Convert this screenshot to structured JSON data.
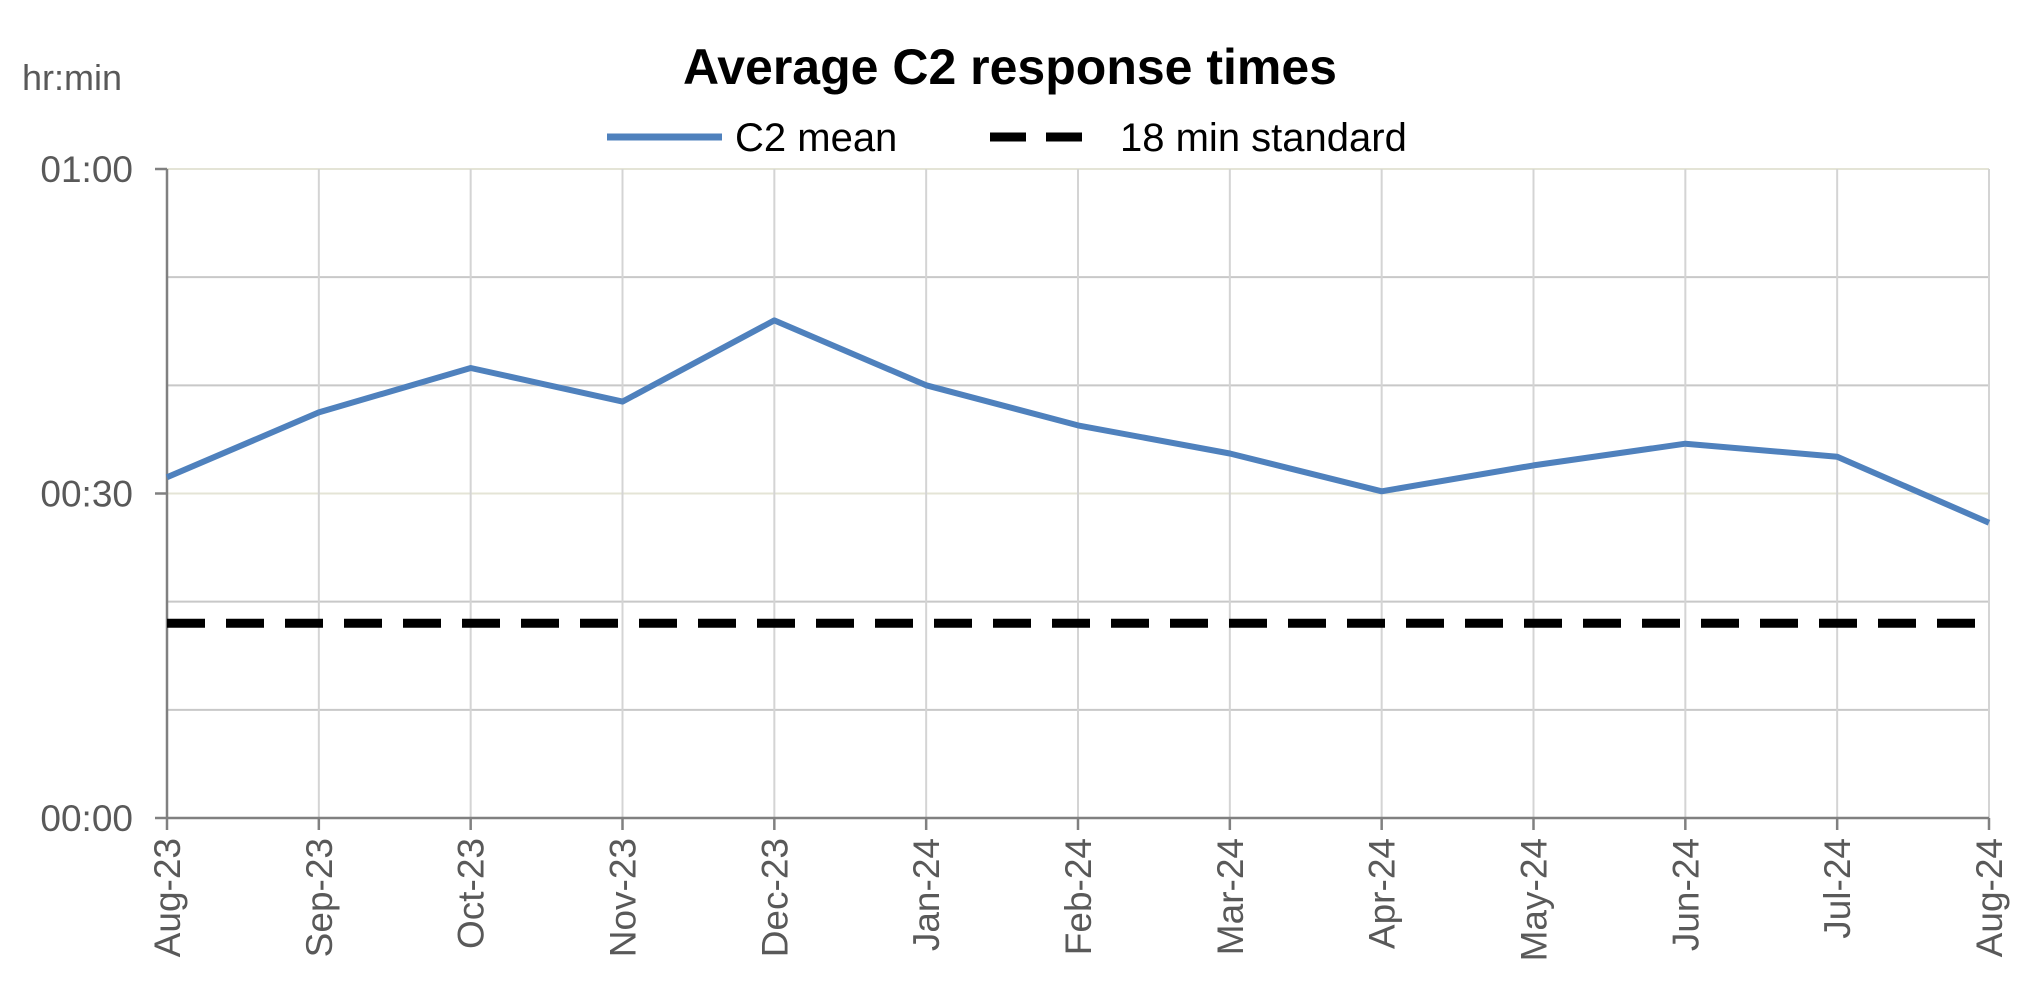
{
  "chart_data": {
    "type": "line",
    "title": "Average C2 response times",
    "ylabel": "hr:min",
    "xlabel": "",
    "categories": [
      "Aug-23",
      "Sep-23",
      "Oct-23",
      "Nov-23",
      "Dec-23",
      "Jan-24",
      "Feb-24",
      "Mar-24",
      "Apr-24",
      "May-24",
      "Jun-24",
      "Jul-24",
      "Aug-24"
    ],
    "y_ticks": [
      {
        "value": 0,
        "label": "00:00"
      },
      {
        "value": 30,
        "label": "00:30"
      },
      {
        "value": 60,
        "label": "01:00"
      }
    ],
    "y_gridlines": [
      0,
      10,
      20,
      30,
      40,
      50,
      60
    ],
    "ylim": [
      0,
      60
    ],
    "grid": true,
    "legend_position": "top",
    "series": [
      {
        "name": "C2 mean",
        "style": "solid",
        "color": "#4f81bd",
        "values": [
          31.5,
          37.5,
          41.6,
          38.5,
          46.0,
          40.0,
          36.3,
          33.7,
          30.2,
          32.6,
          34.6,
          33.4,
          27.3
        ]
      },
      {
        "name": "18 min standard",
        "style": "dashed",
        "color": "#000000",
        "values": [
          18,
          18,
          18,
          18,
          18,
          18,
          18,
          18,
          18,
          18,
          18,
          18,
          18
        ]
      }
    ]
  }
}
